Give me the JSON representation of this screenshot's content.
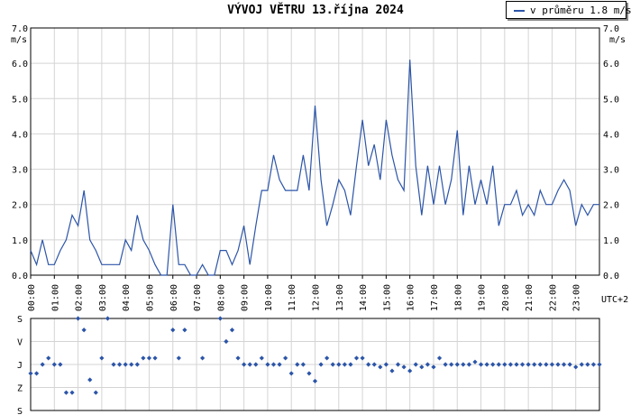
{
  "title": "VÝVOJ VĚTRU  13.října 2024",
  "legend": {
    "label": "v průměru 1.8 m/s",
    "color": "#2c55a8"
  },
  "unit_label": "m/s",
  "timezone_label": "UTC+2",
  "colors": {
    "series": "#2c55a8",
    "grid": "#d4d4d4",
    "axis": "#000000"
  },
  "chart_data": [
    {
      "type": "line",
      "title": "VÝVOJ VĚTRU  13.října 2024",
      "ylabel": "m/s",
      "ylim": [
        0,
        7
      ],
      "yticks": [
        "0.0",
        "1.0",
        "2.0",
        "3.0",
        "4.0",
        "5.0",
        "6.0",
        "7.0"
      ],
      "xlim": [
        0,
        24
      ],
      "xticks": [
        "00:00",
        "01:00",
        "02:00",
        "03:00",
        "04:00",
        "05:00",
        "06:00",
        "07:00",
        "08:00",
        "09:00",
        "10:00",
        "11:00",
        "12:00",
        "13:00",
        "14:00",
        "15:00",
        "16:00",
        "17:00",
        "18:00",
        "19:00",
        "20:00",
        "21:00",
        "22:00",
        "23:00"
      ],
      "grid": true,
      "legend_position": "top-right",
      "series": [
        {
          "name": "v průměru 1.8 m/s",
          "x": [
            0,
            0.25,
            0.5,
            0.75,
            1,
            1.25,
            1.5,
            1.75,
            2,
            2.25,
            2.5,
            2.75,
            3,
            3.25,
            3.5,
            3.75,
            4,
            4.25,
            4.5,
            4.75,
            5,
            5.25,
            5.5,
            5.75,
            6,
            6.25,
            6.5,
            6.75,
            7,
            7.25,
            7.5,
            7.75,
            8,
            8.25,
            8.5,
            8.75,
            9,
            9.25,
            9.5,
            9.75,
            10,
            10.25,
            10.5,
            10.75,
            11,
            11.25,
            11.5,
            11.75,
            12,
            12.25,
            12.5,
            12.75,
            13,
            13.25,
            13.5,
            13.75,
            14,
            14.25,
            14.5,
            14.75,
            15,
            15.25,
            15.5,
            15.75,
            16,
            16.25,
            16.5,
            16.75,
            17,
            17.25,
            17.5,
            17.75,
            18,
            18.25,
            18.5,
            18.75,
            19,
            19.25,
            19.5,
            19.75,
            20,
            20.25,
            20.5,
            20.75,
            21,
            21.25,
            21.5,
            21.75,
            22,
            22.25,
            22.5,
            22.75,
            23,
            23.25,
            23.5,
            23.75,
            24
          ],
          "values": [
            0.7,
            0.3,
            1.0,
            0.3,
            0.3,
            0.7,
            1.0,
            1.7,
            1.4,
            2.4,
            1.0,
            0.7,
            0.3,
            0.3,
            0.3,
            0.3,
            1.0,
            0.7,
            1.7,
            1.0,
            0.7,
            0.3,
            0.0,
            0.0,
            2.0,
            0.3,
            0.3,
            0.0,
            0.0,
            0.3,
            0.0,
            0.0,
            0.7,
            0.7,
            0.3,
            0.7,
            1.4,
            0.3,
            1.4,
            2.4,
            2.4,
            3.4,
            2.7,
            2.4,
            2.4,
            2.4,
            3.4,
            2.4,
            4.8,
            2.7,
            1.4,
            2.0,
            2.7,
            2.4,
            1.7,
            3.1,
            4.4,
            3.1,
            3.7,
            2.7,
            4.4,
            3.4,
            2.7,
            2.4,
            6.1,
            3.1,
            1.7,
            3.1,
            2.0,
            3.1,
            2.0,
            2.7,
            4.1,
            1.7,
            3.1,
            2.0,
            2.7,
            2.0,
            3.1,
            1.4,
            2.0,
            2.0,
            2.4,
            1.7,
            2.0,
            1.7,
            2.4,
            2.0,
            2.0,
            2.4,
            2.7,
            2.4,
            1.4,
            2.0,
            1.7,
            2.0,
            2.0
          ]
        }
      ]
    },
    {
      "type": "scatter",
      "ylabel": "wind direction",
      "yticks": [
        "S",
        "V",
        "J",
        "Z",
        "S"
      ],
      "xlim": [
        0,
        24
      ],
      "grid": true,
      "series": [
        {
          "name": "direction",
          "x": [
            0,
            0.25,
            0.5,
            0.75,
            1,
            1.25,
            1.5,
            1.75,
            2,
            2.25,
            2.5,
            2.75,
            3,
            3.25,
            3.5,
            3.75,
            4,
            4.25,
            4.5,
            4.75,
            5,
            5.25,
            5.5,
            5.75,
            6,
            6.25,
            6.5,
            6.75,
            7,
            7.25,
            7.5,
            7.75,
            8,
            8.25,
            8.5,
            8.75,
            9,
            9.25,
            9.5,
            9.75,
            10,
            10.25,
            10.5,
            10.75,
            11,
            11.25,
            11.5,
            11.75,
            12,
            12.25,
            12.5,
            12.75,
            13,
            13.25,
            13.5,
            13.75,
            14,
            14.25,
            14.5,
            14.75,
            15,
            15.25,
            15.5,
            15.75,
            16,
            16.25,
            16.5,
            16.75,
            17,
            17.25,
            17.5,
            17.75,
            18,
            18.25,
            18.5,
            18.75,
            19,
            19.25,
            19.5,
            19.75,
            20,
            20.25,
            20.5,
            20.75,
            21,
            21.25,
            21.5,
            21.75,
            22,
            22.25,
            22.5,
            22.75,
            23,
            23.25,
            23.5,
            23.75,
            24
          ],
          "values": [
            215,
            215,
            180,
            155,
            180,
            180,
            290,
            290,
            0,
            45,
            240,
            290,
            155,
            0,
            180,
            180,
            180,
            180,
            180,
            155,
            155,
            155,
            null,
            null,
            45,
            155,
            45,
            null,
            null,
            155,
            null,
            null,
            0,
            90,
            45,
            155,
            180,
            180,
            180,
            155,
            180,
            180,
            180,
            155,
            215,
            180,
            180,
            215,
            245,
            180,
            155,
            180,
            180,
            180,
            180,
            155,
            155,
            180,
            180,
            190,
            180,
            205,
            180,
            190,
            205,
            180,
            190,
            180,
            190,
            155,
            180,
            180,
            180,
            180,
            180,
            170,
            180,
            180,
            180,
            180,
            180,
            180,
            180,
            180,
            180,
            180,
            180,
            180,
            180,
            180,
            180,
            180,
            190,
            180,
            180,
            180,
            180
          ]
        }
      ]
    }
  ]
}
